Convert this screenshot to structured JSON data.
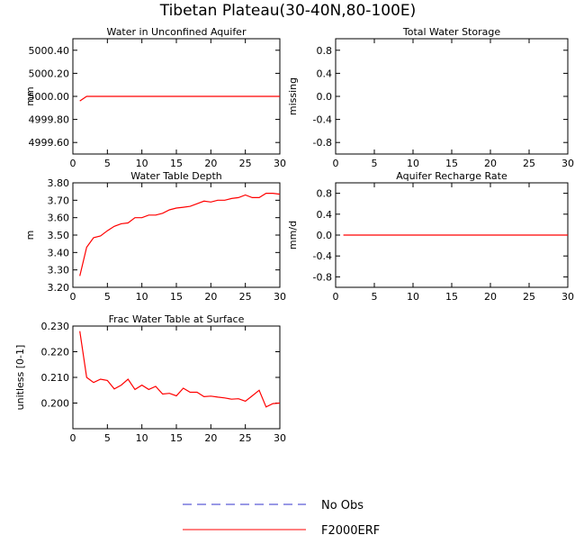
{
  "title": "Tibetan Plateau(30-40N,80-100E)",
  "colors": {
    "model": "#ff0000",
    "obs": "#3333cc",
    "axis": "#000000"
  },
  "legend": [
    {
      "label": "No Obs",
      "style": "dashed",
      "color": "#3333cc"
    },
    {
      "label": "F2000ERF",
      "style": "solid",
      "color": "#ff0000"
    }
  ],
  "chart_data": [
    {
      "type": "line",
      "title": "Water in Unconfined Aquifer",
      "ylabel": "mm",
      "xlim": [
        0,
        30
      ],
      "xticks": [
        0,
        5,
        10,
        15,
        20,
        25,
        30
      ],
      "ylim": [
        4999.5,
        5000.5
      ],
      "yticks": [
        4999.6,
        4999.8,
        5000.0,
        5000.2,
        5000.4
      ],
      "ytick_labels": [
        "4999.60",
        "4999.80",
        "5000.00",
        "5000.20",
        "5000.40"
      ],
      "series": [
        {
          "name": "F2000ERF",
          "x": [
            1,
            2,
            3,
            4,
            5,
            6,
            7,
            8,
            9,
            10,
            11,
            12,
            13,
            14,
            15,
            16,
            17,
            18,
            19,
            20,
            21,
            22,
            23,
            24,
            25,
            26,
            27,
            28,
            29,
            30
          ],
          "y": [
            4999.96,
            5000,
            5000,
            5000,
            5000,
            5000,
            5000,
            5000,
            5000,
            5000,
            5000,
            5000,
            5000,
            5000,
            5000,
            5000,
            5000,
            5000,
            5000,
            5000,
            5000,
            5000,
            5000,
            5000,
            5000,
            5000,
            5000,
            5000,
            5000,
            5000
          ]
        }
      ]
    },
    {
      "type": "line",
      "title": "Total Water Storage",
      "ylabel": "missing",
      "xlim": [
        0,
        30
      ],
      "xticks": [
        0,
        5,
        10,
        15,
        20,
        25,
        30
      ],
      "ylim": [
        -1,
        1
      ],
      "yticks": [
        -0.8,
        -0.4,
        0.0,
        0.4,
        0.8
      ],
      "ytick_labels": [
        "-0.8",
        "-0.4",
        "0.0",
        "0.4",
        "0.8"
      ],
      "series": []
    },
    {
      "type": "line",
      "title": "Water Table Depth",
      "ylabel": "m",
      "xlim": [
        0,
        30
      ],
      "xticks": [
        0,
        5,
        10,
        15,
        20,
        25,
        30
      ],
      "ylim": [
        3.2,
        3.8
      ],
      "yticks": [
        3.2,
        3.3,
        3.4,
        3.5,
        3.6,
        3.7,
        3.8
      ],
      "ytick_labels": [
        "3.20",
        "3.30",
        "3.40",
        "3.50",
        "3.60",
        "3.70",
        "3.80"
      ],
      "series": [
        {
          "name": "F2000ERF",
          "x": [
            1,
            2,
            3,
            4,
            5,
            6,
            7,
            8,
            9,
            10,
            11,
            12,
            13,
            14,
            15,
            16,
            17,
            18,
            19,
            20,
            21,
            22,
            23,
            24,
            25,
            26,
            27,
            28,
            29,
            30
          ],
          "y": [
            3.265,
            3.43,
            3.485,
            3.495,
            3.525,
            3.55,
            3.565,
            3.57,
            3.6,
            3.6,
            3.615,
            3.615,
            3.625,
            3.645,
            3.655,
            3.66,
            3.665,
            3.68,
            3.695,
            3.69,
            3.7,
            3.7,
            3.71,
            3.715,
            3.73,
            3.715,
            3.715,
            3.74,
            3.74,
            3.735
          ]
        }
      ]
    },
    {
      "type": "line",
      "title": "Aquifer Recharge Rate",
      "ylabel": "mm/d",
      "xlim": [
        0,
        30
      ],
      "xticks": [
        0,
        5,
        10,
        15,
        20,
        25,
        30
      ],
      "ylim": [
        -1,
        1
      ],
      "yticks": [
        -0.8,
        -0.4,
        0.0,
        0.4,
        0.8
      ],
      "ytick_labels": [
        "-0.8",
        "-0.4",
        "0.0",
        "0.4",
        "0.8"
      ],
      "series": [
        {
          "name": "F2000ERF",
          "x": [
            1,
            2,
            3,
            4,
            5,
            6,
            7,
            8,
            9,
            10,
            11,
            12,
            13,
            14,
            15,
            16,
            17,
            18,
            19,
            20,
            21,
            22,
            23,
            24,
            25,
            26,
            27,
            28,
            29,
            30
          ],
          "y": [
            0,
            0,
            0,
            0,
            0,
            0,
            0,
            0,
            0,
            0,
            0,
            0,
            0,
            0,
            0,
            0,
            0,
            0,
            0,
            0,
            0,
            0,
            0,
            0,
            0,
            0,
            0,
            0,
            0,
            0
          ]
        }
      ]
    },
    {
      "type": "line",
      "title": "Frac Water Table at Surface",
      "ylabel": "unitless [0-1]",
      "xlim": [
        0,
        30
      ],
      "xticks": [
        0,
        5,
        10,
        15,
        20,
        25,
        30
      ],
      "ylim": [
        0.19,
        0.23
      ],
      "yticks": [
        0.2,
        0.21,
        0.22,
        0.23
      ],
      "ytick_labels": [
        "0.200",
        "0.210",
        "0.220",
        "0.230"
      ],
      "series": [
        {
          "name": "F2000ERF",
          "x": [
            1,
            2,
            3,
            4,
            5,
            6,
            7,
            8,
            9,
            10,
            11,
            12,
            13,
            14,
            15,
            16,
            17,
            18,
            19,
            20,
            21,
            22,
            23,
            24,
            25,
            26,
            27,
            28,
            29,
            30
          ],
          "y": [
            0.228,
            0.21,
            0.208,
            0.2093,
            0.2088,
            0.2055,
            0.207,
            0.2093,
            0.2053,
            0.207,
            0.2053,
            0.2065,
            0.2035,
            0.2038,
            0.2028,
            0.2058,
            0.2042,
            0.2042,
            0.2025,
            0.2027,
            0.2023,
            0.202,
            0.2015,
            0.2017,
            0.2007,
            0.2028,
            0.205,
            0.1985,
            0.1998,
            0.2
          ]
        }
      ]
    }
  ]
}
